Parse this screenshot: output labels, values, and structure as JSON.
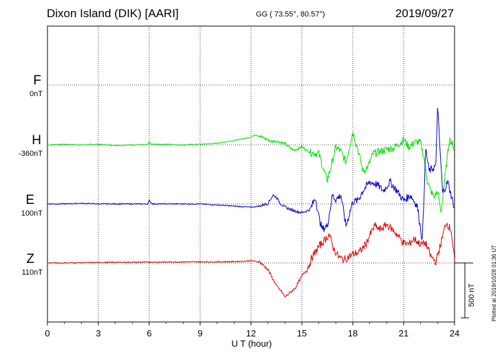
{
  "header": {
    "station": "Dixon Island (DIK)  [AARI]",
    "coords": "GG ( 73.55°,  80.57°)",
    "date": "2019/09/27"
  },
  "footer": {
    "plotted": "Plotted at 2019/10/28 01:36 UT",
    "scale_bar": "500 nT"
  },
  "chart_data": {
    "type": "line",
    "title": "Dixon Island (DIK)  [AARI]",
    "xlabel": "U T (hour)",
    "ylabel": "",
    "xlim": [
      0,
      24
    ],
    "x_ticks": [
      "0",
      "3",
      "6",
      "9",
      "12",
      "15",
      "18",
      "21",
      "24"
    ],
    "grid": true,
    "scale_nT": 500,
    "channels": [
      {
        "name": "F",
        "baseline": "0nT",
        "color": "#f0a000"
      },
      {
        "name": "H",
        "baseline": "-360nT",
        "color": "#00e000"
      },
      {
        "name": "E",
        "baseline": "100nT",
        "color": "#0000cc"
      },
      {
        "name": "Z",
        "baseline": "110nT",
        "color": "#e00000"
      }
    ],
    "series": [
      {
        "name": "H",
        "color": "#00e000",
        "x": [
          0,
          1,
          2,
          3,
          4,
          5,
          5.9,
          6.0,
          6.1,
          7,
          8,
          9,
          10,
          11,
          12,
          12.3,
          12.8,
          13.2,
          13.5,
          14,
          14.5,
          15,
          15.5,
          16,
          16.3,
          16.5,
          16.8,
          17,
          17.3,
          17.6,
          18,
          18.3,
          18.6,
          18.9,
          19.2,
          19.6,
          20,
          20.4,
          20.8,
          21,
          21.3,
          21.7,
          22,
          22.2,
          22.4,
          22.6,
          22.8,
          23.0,
          23.2,
          23.4,
          23.7,
          24
        ],
        "y": [
          0,
          5,
          0,
          5,
          -5,
          0,
          0,
          30,
          5,
          5,
          0,
          5,
          15,
          40,
          70,
          95,
          60,
          30,
          35,
          10,
          -50,
          -20,
          -70,
          -80,
          -240,
          -320,
          -150,
          -20,
          -60,
          -160,
          120,
          -40,
          -240,
          -200,
          -80,
          -60,
          -40,
          -30,
          20,
          50,
          -20,
          30,
          20,
          -120,
          -330,
          -420,
          -480,
          -420,
          -620,
          -350,
          60,
          -40
        ]
      },
      {
        "name": "E",
        "color": "#0000cc",
        "x": [
          0,
          1,
          2,
          3,
          4,
          5,
          5.9,
          6.0,
          6.2,
          7,
          8,
          9,
          10,
          11,
          12,
          12.5,
          13,
          13.3,
          13.5,
          13.7,
          14,
          14.5,
          15,
          15.5,
          15.8,
          16,
          16.2,
          16.5,
          16.8,
          17,
          17.3,
          17.6,
          18,
          18.3,
          18.6,
          19,
          19.4,
          19.8,
          20.2,
          20.6,
          21,
          21.4,
          21.8,
          22.1,
          22.3,
          22.5,
          22.7,
          22.9,
          23.0,
          23.1,
          23.3,
          23.6,
          24
        ],
        "y": [
          0,
          0,
          5,
          0,
          0,
          0,
          0,
          30,
          0,
          0,
          0,
          0,
          -10,
          -20,
          -30,
          -20,
          5,
          80,
          60,
          10,
          -30,
          -60,
          -80,
          -50,
          60,
          -120,
          -230,
          -200,
          80,
          40,
          80,
          -200,
          20,
          30,
          120,
          200,
          180,
          120,
          200,
          120,
          30,
          80,
          -20,
          -330,
          500,
          300,
          320,
          350,
          900,
          600,
          100,
          200,
          -40
        ]
      },
      {
        "name": "Z",
        "color": "#e00000",
        "x": [
          0,
          1,
          2,
          3,
          4,
          5,
          6,
          7,
          8,
          9,
          10,
          11,
          11.5,
          12,
          12.5,
          13,
          13.3,
          13.6,
          13.8,
          14,
          14.3,
          14.6,
          15,
          15.3,
          15.6,
          16,
          16.3,
          16.6,
          16.9,
          17.2,
          17.5,
          18,
          18.4,
          18.8,
          19,
          19.3,
          19.6,
          20,
          20.5,
          21,
          21.3,
          21.6,
          22,
          22.3,
          22.6,
          22.9,
          23.2,
          23.5,
          23.8,
          24
        ],
        "y": [
          0,
          0,
          2,
          4,
          6,
          6,
          8,
          8,
          10,
          10,
          10,
          12,
          15,
          20,
          10,
          -60,
          -150,
          -230,
          -260,
          -310,
          -270,
          -230,
          -120,
          -60,
          50,
          150,
          200,
          260,
          120,
          50,
          30,
          80,
          100,
          180,
          250,
          340,
          300,
          350,
          280,
          180,
          170,
          220,
          170,
          180,
          60,
          10,
          180,
          370,
          300,
          20
        ]
      }
    ]
  }
}
